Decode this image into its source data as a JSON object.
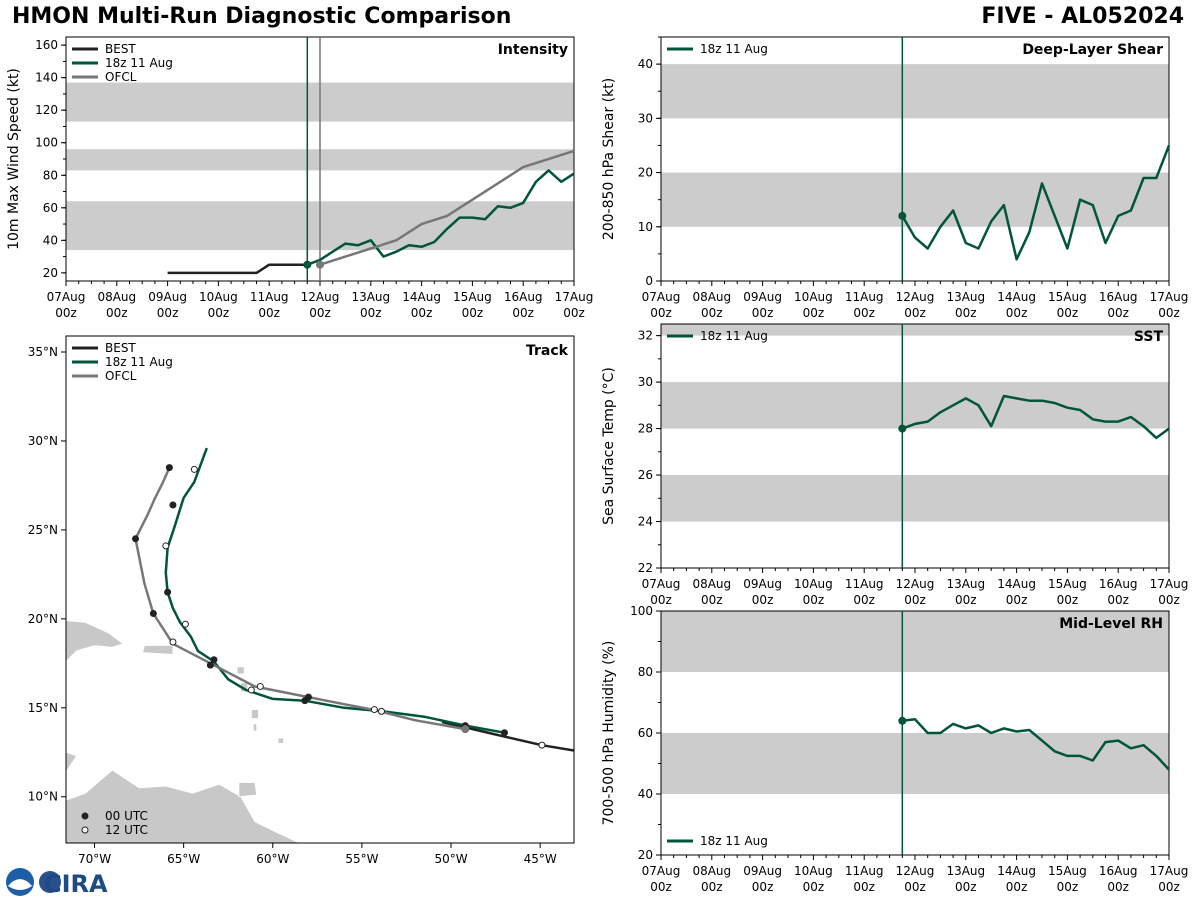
{
  "header": {
    "left_title": "HMON Multi-Run Diagnostic Comparison",
    "right_title": "FIVE - AL052024"
  },
  "colors": {
    "best": "#222222",
    "run": "#00553a",
    "ofcl": "#777777",
    "band": "#cccccc",
    "land": "#c8c8c8"
  },
  "logo": {
    "text": "CIRA",
    "icon": "noaa-logo-icon"
  },
  "time_ticks": [
    "07Aug\n00z",
    "08Aug\n00z",
    "09Aug\n00z",
    "10Aug\n00z",
    "11Aug\n00z",
    "12Aug\n00z",
    "13Aug\n00z",
    "14Aug\n00z",
    "15Aug\n00z",
    "16Aug\n00z",
    "17Aug\n00z"
  ],
  "chart_data": [
    {
      "id": "intensity",
      "type": "line",
      "title": "Intensity",
      "ylabel": "10m Max Wind Speed (kt)",
      "xlim": [
        0,
        240
      ],
      "ylim": [
        15,
        165
      ],
      "yticks": [
        20,
        40,
        60,
        80,
        100,
        120,
        140,
        160
      ],
      "bands": [
        [
          34,
          64
        ],
        [
          83,
          96
        ],
        [
          113,
          137
        ]
      ],
      "vlines": [
        {
          "x": 114,
          "color": "run"
        },
        {
          "x": 120,
          "color": "ofcl"
        }
      ],
      "legend": [
        "BEST",
        "18z 11 Aug",
        "OFCL"
      ],
      "series": [
        {
          "name": "BEST",
          "color": "best",
          "x": [
            48,
            54,
            60,
            66,
            72,
            78,
            84,
            90,
            96,
            102,
            108,
            114
          ],
          "y": [
            20,
            20,
            20,
            20,
            20,
            20,
            20,
            20,
            25,
            25,
            25,
            25
          ]
        },
        {
          "name": "18z 11 Aug",
          "color": "run",
          "x": [
            114,
            120,
            126,
            132,
            138,
            144,
            150,
            156,
            162,
            168,
            174,
            180,
            186,
            192,
            198,
            204,
            210,
            216,
            222,
            228,
            234,
            240
          ],
          "y": [
            25,
            28,
            33,
            38,
            37,
            40,
            30,
            33,
            37,
            36,
            39,
            47,
            54,
            54,
            53,
            61,
            60,
            63,
            76,
            83,
            76,
            81
          ]
        },
        {
          "name": "OFCL",
          "color": "ofcl",
          "x": [
            120,
            132,
            144,
            156,
            168,
            180,
            192,
            204,
            216,
            240
          ],
          "y": [
            25,
            30,
            35,
            40,
            50,
            55,
            65,
            75,
            85,
            95
          ]
        }
      ],
      "markers": [
        {
          "x": 114,
          "y": 25,
          "color": "run"
        },
        {
          "x": 120,
          "y": 25,
          "color": "ofcl"
        }
      ]
    },
    {
      "id": "shear",
      "type": "line",
      "title": "Deep-Layer Shear",
      "ylabel": "200-850 hPa Shear (kt)",
      "xlim": [
        0,
        240
      ],
      "ylim": [
        0,
        45
      ],
      "yticks": [
        0,
        10,
        20,
        30,
        40
      ],
      "bands": [
        [
          10,
          20
        ],
        [
          30,
          40
        ]
      ],
      "vlines": [
        {
          "x": 114,
          "color": "run"
        }
      ],
      "legend": [
        "18z 11 Aug"
      ],
      "series": [
        {
          "name": "18z 11 Aug",
          "color": "run",
          "x": [
            114,
            120,
            126,
            132,
            138,
            144,
            150,
            156,
            162,
            168,
            174,
            180,
            186,
            192,
            198,
            204,
            210,
            216,
            222,
            228,
            234,
            240
          ],
          "y": [
            12,
            8,
            6,
            10,
            13,
            7,
            6,
            11,
            14,
            4,
            9,
            18,
            12,
            6,
            15,
            14,
            7,
            12,
            13,
            19,
            19,
            25
          ]
        }
      ],
      "markers": [
        {
          "x": 114,
          "y": 12,
          "color": "run"
        }
      ]
    },
    {
      "id": "sst",
      "type": "line",
      "title": "SST",
      "ylabel": "Sea Surface Temp (°C)",
      "xlim": [
        0,
        240
      ],
      "ylim": [
        22,
        32.5
      ],
      "yticks": [
        22,
        24,
        26,
        28,
        30,
        32
      ],
      "bands": [
        [
          24,
          26
        ],
        [
          28,
          30
        ],
        [
          32,
          32.5
        ]
      ],
      "vlines": [
        {
          "x": 114,
          "color": "run"
        }
      ],
      "legend": [
        "18z 11 Aug"
      ],
      "series": [
        {
          "name": "18z 11 Aug",
          "color": "run",
          "x": [
            114,
            120,
            126,
            132,
            138,
            144,
            150,
            156,
            162,
            168,
            174,
            180,
            186,
            192,
            198,
            204,
            210,
            216,
            222,
            228,
            234,
            240
          ],
          "y": [
            28.0,
            28.2,
            28.3,
            28.7,
            29.0,
            29.3,
            29.0,
            28.1,
            29.4,
            29.3,
            29.2,
            29.2,
            29.1,
            28.9,
            28.8,
            28.4,
            28.3,
            28.3,
            28.5,
            28.1,
            27.6,
            28.0
          ]
        }
      ],
      "markers": [
        {
          "x": 114,
          "y": 28.0,
          "color": "run"
        }
      ]
    },
    {
      "id": "rh",
      "type": "line",
      "title": "Mid-Level RH",
      "ylabel": "700-500 hPa Humidity (%)",
      "xlim": [
        0,
        240
      ],
      "ylim": [
        20,
        100
      ],
      "yticks": [
        20,
        40,
        60,
        80,
        100
      ],
      "bands": [
        [
          40,
          60
        ],
        [
          80,
          100
        ]
      ],
      "vlines": [
        {
          "x": 114,
          "color": "run"
        }
      ],
      "legend": [
        "18z 11 Aug"
      ],
      "legend_pos": "bottom-left",
      "series": [
        {
          "name": "18z 11 Aug",
          "color": "run",
          "x": [
            114,
            120,
            126,
            132,
            138,
            144,
            150,
            156,
            162,
            168,
            174,
            180,
            186,
            192,
            198,
            204,
            210,
            216,
            222,
            228,
            234,
            240
          ],
          "y": [
            64,
            64.5,
            60,
            60,
            63,
            61.5,
            62.5,
            60,
            61.5,
            60.5,
            61,
            57.5,
            54,
            52.5,
            52.5,
            51,
            57,
            57.5,
            55,
            56,
            52.5,
            48
          ]
        }
      ],
      "markers": [
        {
          "x": 114,
          "y": 64,
          "color": "run"
        }
      ]
    },
    {
      "id": "track",
      "type": "scatter",
      "title": "Track",
      "xlim": [
        -71.6,
        -43.1
      ],
      "ylim": [
        7.4,
        35.9
      ],
      "xticks": [
        -70,
        -65,
        -60,
        -55,
        -50,
        -45
      ],
      "xtick_labels": [
        "70°W",
        "65°W",
        "60°W",
        "55°W",
        "50°W",
        "45°W"
      ],
      "yticks": [
        10,
        15,
        20,
        25,
        30,
        35
      ],
      "ytick_labels": [
        "10°N",
        "15°N",
        "20°N",
        "25°N",
        "30°N",
        "35°N"
      ],
      "legend": [
        "BEST",
        "18z 11 Aug",
        "OFCL"
      ],
      "marker_legend": [
        "00 UTC",
        "12 UTC"
      ],
      "series": [
        {
          "name": "BEST",
          "color": "best",
          "lon": [
            -43.1,
            -44.9,
            -47.5,
            -49.2,
            -50.5
          ],
          "lat": [
            12.6,
            12.9,
            13.5,
            13.9,
            14.2
          ]
        },
        {
          "name": "18z 11 Aug",
          "color": "run",
          "lon": [
            -47.0,
            -49.2,
            -51.5,
            -53.8,
            -56.0,
            -58.2,
            -60.0,
            -61.5,
            -62.5,
            -63.3,
            -64.2,
            -64.6,
            -65.2,
            -65.6,
            -65.9,
            -66.0,
            -65.9,
            -65.5,
            -65.0,
            -64.4,
            -63.7
          ],
          "lat": [
            13.6,
            14.0,
            14.5,
            14.8,
            15.0,
            15.4,
            15.5,
            16.0,
            16.6,
            17.6,
            18.2,
            19.0,
            19.8,
            20.6,
            21.5,
            22.6,
            24.0,
            25.2,
            26.8,
            27.7,
            29.6
          ]
        },
        {
          "name": "OFCL",
          "color": "ofcl",
          "lon": [
            -49.2,
            -52.0,
            -54.4,
            -56.0,
            -58.0,
            -61.0,
            -63.5,
            -65.6,
            -66.7,
            -67.2,
            -67.7,
            -67.0,
            -66.6,
            -66.2,
            -65.8
          ],
          "lat": [
            13.8,
            14.3,
            14.9,
            15.2,
            15.6,
            16.2,
            17.5,
            18.6,
            20.3,
            22.0,
            24.5,
            25.9,
            26.8,
            27.6,
            28.5
          ]
        }
      ],
      "points_00utc": [
        [
          -49.2,
          14.0
        ],
        [
          -58.0,
          15.6
        ],
        [
          -58.2,
          15.4
        ],
        [
          -63.5,
          17.4
        ],
        [
          -63.3,
          17.7
        ],
        [
          -66.7,
          20.3
        ],
        [
          -65.9,
          21.5
        ],
        [
          -67.7,
          24.5
        ],
        [
          -65.6,
          26.4
        ],
        [
          -65.8,
          28.5
        ],
        [
          -47.0,
          13.6
        ]
      ],
      "points_12utc": [
        [
          -44.9,
          12.9
        ],
        [
          -53.9,
          14.8
        ],
        [
          -54.3,
          14.9
        ],
        [
          -60.7,
          16.2
        ],
        [
          -61.2,
          16.0
        ],
        [
          -65.6,
          18.7
        ],
        [
          -64.9,
          19.7
        ],
        [
          -66.0,
          24.1
        ],
        [
          -64.4,
          28.4
        ]
      ],
      "grey_point": [
        -49.2,
        13.8
      ]
    }
  ]
}
